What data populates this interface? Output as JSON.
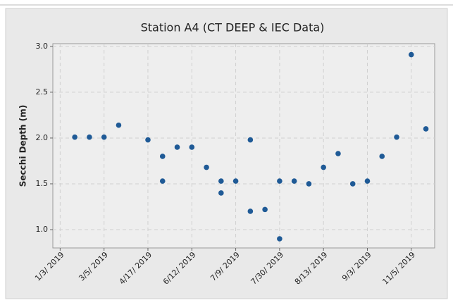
{
  "chart_data": {
    "type": "scatter",
    "title": "Station A4 (CT DEEP & IEC Data)",
    "y_label": "Secchi Depth (m)",
    "x": [
      1,
      2,
      3,
      4,
      6,
      7,
      7,
      8,
      9,
      10,
      11,
      11,
      12,
      13,
      13,
      14,
      15,
      15,
      16,
      17,
      18,
      19,
      20,
      21,
      22,
      23,
      24,
      25
    ],
    "values": [
      2.01,
      2.01,
      2.01,
      2.14,
      1.98,
      1.8,
      1.53,
      1.9,
      1.9,
      1.68,
      1.53,
      1.4,
      1.53,
      1.2,
      1.98,
      1.22,
      1.53,
      0.9,
      1.53,
      1.5,
      1.68,
      1.83,
      1.5,
      1.53,
      1.8,
      2.01,
      2.91,
      2.1
    ],
    "color": "#1f5a96",
    "xlim": [
      -0.5,
      25.6
    ],
    "xticks": [
      {
        "value": 0,
        "label": "1/3/ 2019"
      },
      {
        "value": 3,
        "label": "3/5/ 2019"
      },
      {
        "value": 6,
        "label": "4/17/ 2019"
      },
      {
        "value": 9,
        "label": "6/12/ 2019"
      },
      {
        "value": 12,
        "label": "7/9/ 2019"
      },
      {
        "value": 15,
        "label": "7/30/ 2019"
      },
      {
        "value": 18,
        "label": "8/13/ 2019"
      },
      {
        "value": 21,
        "label": "9/3/ 2019"
      },
      {
        "value": 24,
        "label": "11/5/ 2019"
      }
    ],
    "ylim": [
      0.8,
      3.03
    ],
    "yticks": [
      {
        "value": 1.0,
        "label": "1.0"
      },
      {
        "value": 1.5,
        "label": "1.5"
      },
      {
        "value": 2.0,
        "label": "2.0"
      },
      {
        "value": 2.5,
        "label": "2.5"
      },
      {
        "value": 3.0,
        "label": "3.0"
      }
    ],
    "grid": true
  }
}
